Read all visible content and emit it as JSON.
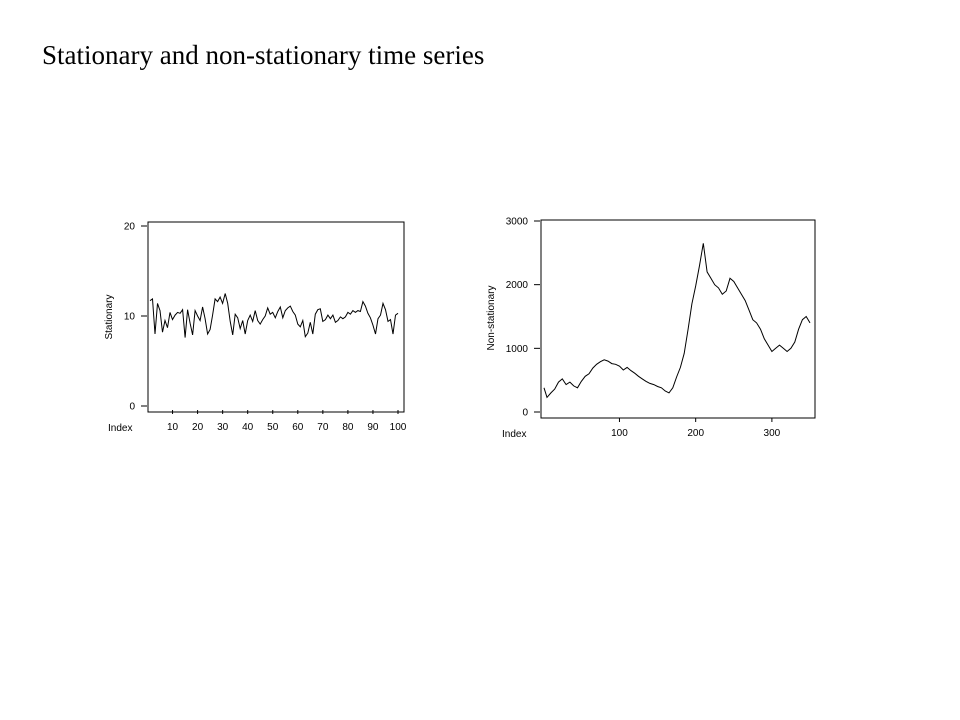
{
  "slide": {
    "title": "Stationary and non-stationary time series"
  },
  "chart_data": [
    {
      "type": "line",
      "title": "",
      "xlabel": "Index",
      "ylabel": "Stationary",
      "xlim": [
        1,
        100
      ],
      "ylim": [
        0,
        20
      ],
      "xticks": [
        10,
        20,
        30,
        40,
        50,
        60,
        70,
        80,
        90,
        100
      ],
      "yticks": [
        0,
        10,
        20
      ],
      "grid": false,
      "legend": "none",
      "color": "#000000",
      "series": [
        {
          "values": [
            11.7,
            11.9,
            8.0,
            11.4,
            10.6,
            8.2,
            9.5,
            8.7,
            10.4,
            9.6,
            10.1,
            10.4,
            10.3,
            10.7,
            7.6,
            10.7,
            9.2,
            7.9,
            10.6,
            10.0,
            9.5,
            11.0,
            9.7,
            8.0,
            8.5,
            10.1,
            11.9,
            11.6,
            12.1,
            11.4,
            12.5,
            11.4,
            9.4,
            7.9,
            10.2,
            9.8,
            8.6,
            9.5,
            8.0,
            9.5,
            10.1,
            9.4,
            10.6,
            9.5,
            9.1,
            9.6,
            10.0,
            10.9,
            10.2,
            10.4,
            9.8,
            10.5,
            11.0,
            9.8,
            10.6,
            10.9,
            11.1,
            10.5,
            10.1,
            9.1,
            8.8,
            9.5,
            7.7,
            8.1,
            9.3,
            8.0,
            10.2,
            10.7,
            10.8,
            9.4,
            9.6,
            10.1,
            9.7,
            10.1,
            9.3,
            9.5,
            9.9,
            9.7,
            9.9,
            10.4,
            10.2,
            10.6,
            10.4,
            10.6,
            10.5,
            11.6,
            11.1,
            10.3,
            9.8,
            9.0,
            8.0,
            9.7,
            10.1,
            11.4,
            10.7,
            9.4,
            9.6,
            8.0,
            10.1,
            10.3
          ]
        }
      ]
    },
    {
      "type": "line",
      "title": "",
      "xlabel": "Index",
      "ylabel": "Non-stationary",
      "xlim": [
        1,
        350
      ],
      "ylim": [
        0,
        3000
      ],
      "xticks": [
        100,
        200,
        300
      ],
      "yticks": [
        0,
        1000,
        2000,
        3000
      ],
      "grid": false,
      "legend": "none",
      "color": "#000000",
      "series": [
        {
          "x": [
            1,
            5,
            10,
            15,
            20,
            25,
            30,
            35,
            40,
            45,
            50,
            55,
            60,
            65,
            70,
            75,
            80,
            85,
            90,
            95,
            100,
            105,
            110,
            115,
            120,
            125,
            130,
            135,
            140,
            145,
            150,
            155,
            160,
            165,
            170,
            175,
            180,
            185,
            190,
            195,
            200,
            205,
            210,
            215,
            220,
            225,
            230,
            235,
            240,
            245,
            250,
            255,
            260,
            265,
            270,
            275,
            280,
            285,
            290,
            295,
            300,
            305,
            310,
            315,
            320,
            325,
            330,
            335,
            340,
            345,
            350
          ],
          "values": [
            380,
            230,
            300,
            360,
            470,
            520,
            430,
            470,
            410,
            380,
            480,
            560,
            600,
            690,
            750,
            790,
            820,
            800,
            760,
            750,
            720,
            660,
            700,
            650,
            610,
            560,
            520,
            480,
            450,
            430,
            400,
            380,
            330,
            300,
            380,
            550,
            700,
            920,
            1300,
            1700,
            1980,
            2300,
            2650,
            2200,
            2100,
            2000,
            1950,
            1850,
            1900,
            2100,
            2050,
            1950,
            1850,
            1750,
            1600,
            1450,
            1400,
            1300,
            1150,
            1050,
            950,
            1000,
            1050,
            1000,
            950,
            1000,
            1100,
            1300,
            1450,
            1500,
            1400
          ]
        }
      ]
    }
  ]
}
